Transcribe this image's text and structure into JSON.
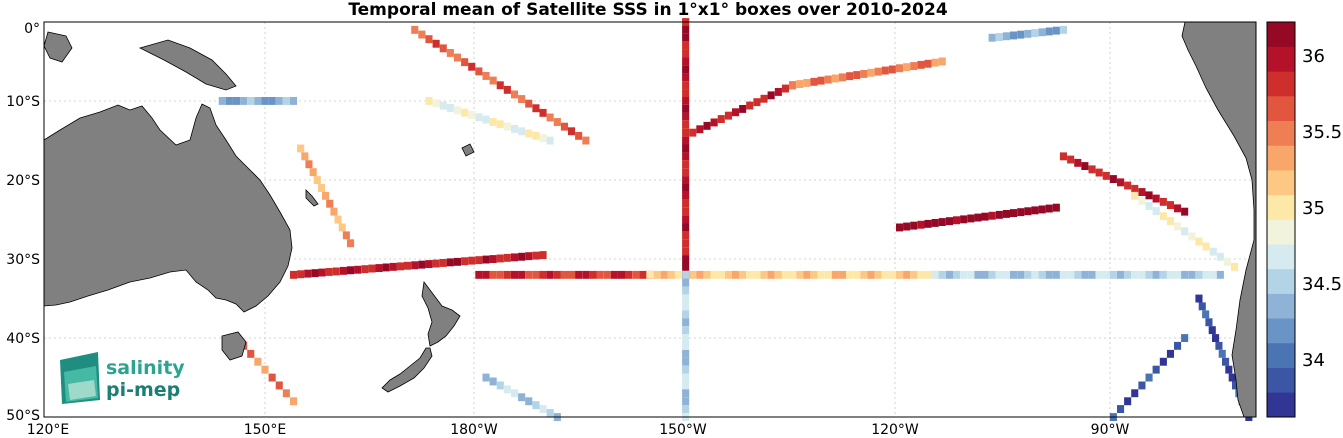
{
  "title": "Temporal mean of Satellite SSS in 1°x1° boxes over 2010-2024",
  "map": {
    "lon_range": [
      120,
      -70
    ],
    "lat_range": [
      -50,
      0
    ],
    "lon_ticks": [
      "120°E",
      "150°E",
      "180°W",
      "150°W",
      "120°W",
      "90°W"
    ],
    "lat_ticks": [
      "0°",
      "10°S",
      "20°S",
      "30°S",
      "40°S",
      "50°S"
    ],
    "grid": true,
    "land_color": "#808080"
  },
  "colorbar": {
    "ticks": [
      "36",
      "35.5",
      "35",
      "34.5",
      "34"
    ],
    "range": [
      33.6,
      36.2
    ],
    "colors": [
      "#313695",
      "#3b56a4",
      "#4a74b4",
      "#6a93c6",
      "#8fb3d6",
      "#b3d3e6",
      "#d6ebf0",
      "#f1f3dd",
      "#fde8a8",
      "#fdc884",
      "#f9a66a",
      "#ef7e55",
      "#e25640",
      "#cf2f2c",
      "#b5122a",
      "#960926"
    ]
  },
  "logo": {
    "line1": "salinity",
    "line2": "pi-mep"
  },
  "chart_data": {
    "type": "heatmap",
    "title": "Temporal mean of Satellite SSS in 1°x1° boxes over 2010-2024",
    "variable": "Satellite SSS",
    "tracks": [
      {
        "lon": [
          155,
          190
        ],
        "lat": [
          -32,
          -29.5
        ],
        "sss": 35.9
      },
      {
        "lon": [
          181,
          205
        ],
        "lat": [
          -32,
          -32
        ],
        "sss": 35.8
      },
      {
        "lon": [
          205,
          245
        ],
        "lat": [
          -32,
          -32
        ],
        "sss": 35.1
      },
      {
        "lon": [
          245,
          285
        ],
        "lat": [
          -32,
          -32
        ],
        "sss": 34.5
      },
      {
        "lon": [
          210,
          210
        ],
        "lat": [
          0,
          -32
        ],
        "sss": 35.9
      },
      {
        "lon": [
          210,
          210
        ],
        "lat": [
          -32,
          -50
        ],
        "sss": 34.5
      },
      {
        "lon": [
          240,
          262
        ],
        "lat": [
          -26,
          -23.5
        ],
        "sss": 36.2
      },
      {
        "lon": [
          263,
          280
        ],
        "lat": [
          -17,
          -24
        ],
        "sss": 35.9
      },
      {
        "lon": [
          273,
          287
        ],
        "lat": [
          -22,
          -31
        ],
        "sss": 34.8
      },
      {
        "lon": [
          211,
          225
        ],
        "lat": [
          -14,
          -8
        ],
        "sss": 35.9
      },
      {
        "lon": [
          225,
          246
        ],
        "lat": [
          -8,
          -5
        ],
        "sss": 35.5
      },
      {
        "lon": [
          253,
          263
        ],
        "lat": [
          -2,
          -1
        ],
        "sss": 34.3
      },
      {
        "lon": [
          172,
          196
        ],
        "lat": [
          -1,
          -15
        ],
        "sss": 35.6
      },
      {
        "lon": [
          174,
          191
        ],
        "lat": [
          -10,
          -15
        ],
        "sss": 34.8
      },
      {
        "lon": [
          156,
          163
        ],
        "lat": [
          -16,
          -28
        ],
        "sss": 35.3
      },
      {
        "lon": [
          145,
          155
        ],
        "lat": [
          -10,
          -10
        ],
        "sss": 34.3
      },
      {
        "lon": [
          147,
          155
        ],
        "lat": [
          -40,
          -48
        ],
        "sss": 35.5
      },
      {
        "lon": [
          182,
          192
        ],
        "lat": [
          -45,
          -50
        ],
        "sss": 34.5
      },
      {
        "lon": [
          270,
          280
        ],
        "lat": [
          -50,
          -40
        ],
        "sss": 33.8
      },
      {
        "lon": [
          282,
          289
        ],
        "lat": [
          -35,
          -50
        ],
        "sss": 33.8
      }
    ]
  }
}
